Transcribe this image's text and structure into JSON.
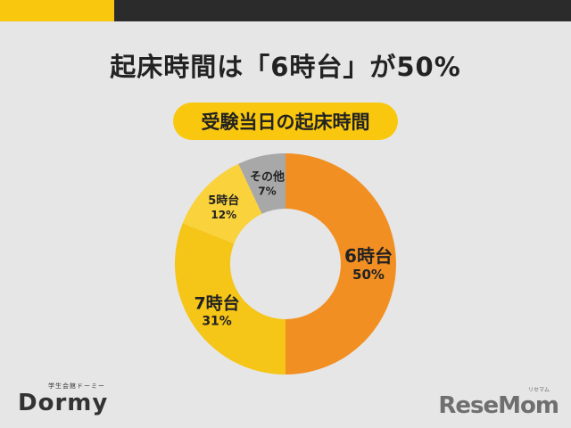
{
  "header": {
    "headline": "起床時間は「6時台」が50%"
  },
  "chart_data": {
    "type": "pie",
    "title": "受験当日の起床時間",
    "donut": true,
    "start": "12 o'clock, clockwise",
    "slices": [
      {
        "label": "6時台",
        "value": 50,
        "value_label": "50%",
        "color": "#f28f22"
      },
      {
        "label": "7時台",
        "value": 31,
        "value_label": "31%",
        "color": "#f5c518"
      },
      {
        "label": "5時台",
        "value": 12,
        "value_label": "12%",
        "color": "#f9d23c"
      },
      {
        "label": "その他",
        "value": 7,
        "value_label": "7%",
        "color": "#a8a8a8"
      }
    ]
  },
  "branding": {
    "left_logo_small": "学生会館ドーミー",
    "left_logo": "Dormy",
    "right_logo_small": "リセマム",
    "right_logo": "ReseMom"
  }
}
